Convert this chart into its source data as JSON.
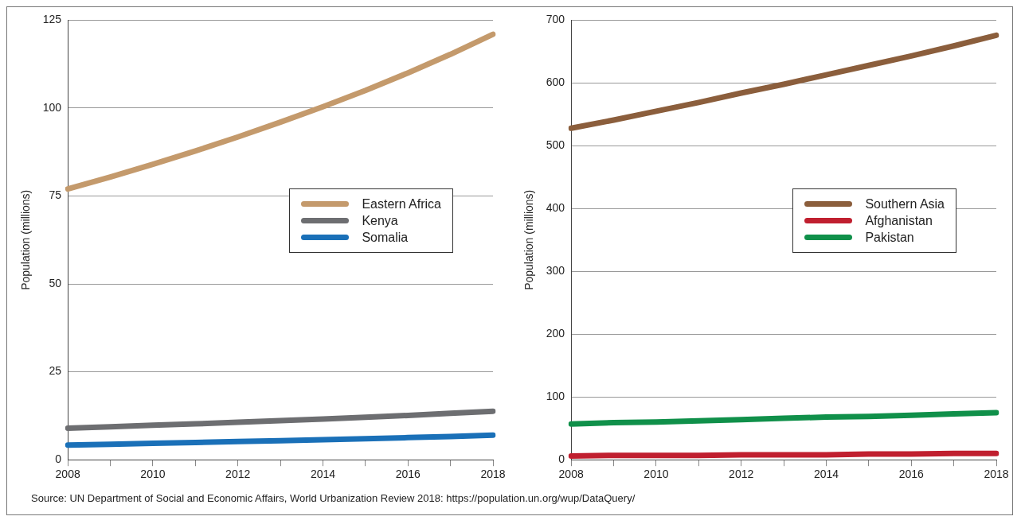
{
  "chart_data": [
    {
      "type": "line",
      "ylabel": "Population (millions)",
      "categories": [
        "2008",
        null,
        "2010",
        null,
        "2012",
        null,
        "2014",
        null,
        "2016",
        null,
        "2018"
      ],
      "series": [
        {
          "name": "Eastern Africa",
          "color": "#c49a6c",
          "values": [
            77,
            80.4,
            84,
            87.8,
            91.8,
            96,
            100.4,
            105,
            110,
            115.3,
            121
          ]
        },
        {
          "name": "Kenya",
          "color": "#6d6e71",
          "values": [
            9,
            9.4,
            9.8,
            10.2,
            10.7,
            11.1,
            11.6,
            12.1,
            12.6,
            13.2,
            13.8
          ]
        },
        {
          "name": "Somalia",
          "color": "#1a70b8",
          "values": [
            4.2,
            4.4,
            4.7,
            4.9,
            5.2,
            5.4,
            5.7,
            6,
            6.3,
            6.6,
            7
          ]
        }
      ],
      "ylim": [
        0,
        125
      ],
      "yticks": [
        0,
        25,
        50,
        75,
        100,
        125
      ],
      "grid": "y",
      "legend": "center right",
      "marker": "none",
      "line_style": "solid",
      "annotations": [
        "Source: UN Department of Social and Economic Affairs, World Urbanization Review 2018: https://population.un.org/wup/DataQuery/"
      ]
    },
    {
      "type": "line",
      "ylabel": "Population (millions)",
      "categories": [
        "2008",
        null,
        "2010",
        null,
        "2012",
        null,
        "2014",
        null,
        "2016",
        null,
        "2018"
      ],
      "series": [
        {
          "name": "Southern Asia",
          "color": "#8b5e3c",
          "values": [
            528,
            541,
            555,
            569,
            584,
            598,
            613,
            628,
            643,
            659,
            676
          ]
        },
        {
          "name": "Afghanistan",
          "color": "#c01f2f",
          "values": [
            6,
            7,
            7,
            7,
            8,
            8,
            8,
            9,
            9,
            10,
            10
          ]
        },
        {
          "name": "Pakistan",
          "color": "#10904a",
          "values": [
            57,
            59,
            60,
            62,
            64,
            66,
            68,
            69,
            71,
            73,
            75
          ]
        }
      ],
      "ylim": [
        0,
        700
      ],
      "yticks": [
        0,
        100,
        200,
        300,
        400,
        500,
        600,
        700
      ],
      "grid": "y",
      "legend": "center right",
      "marker": "none",
      "line_style": "solid"
    }
  ]
}
